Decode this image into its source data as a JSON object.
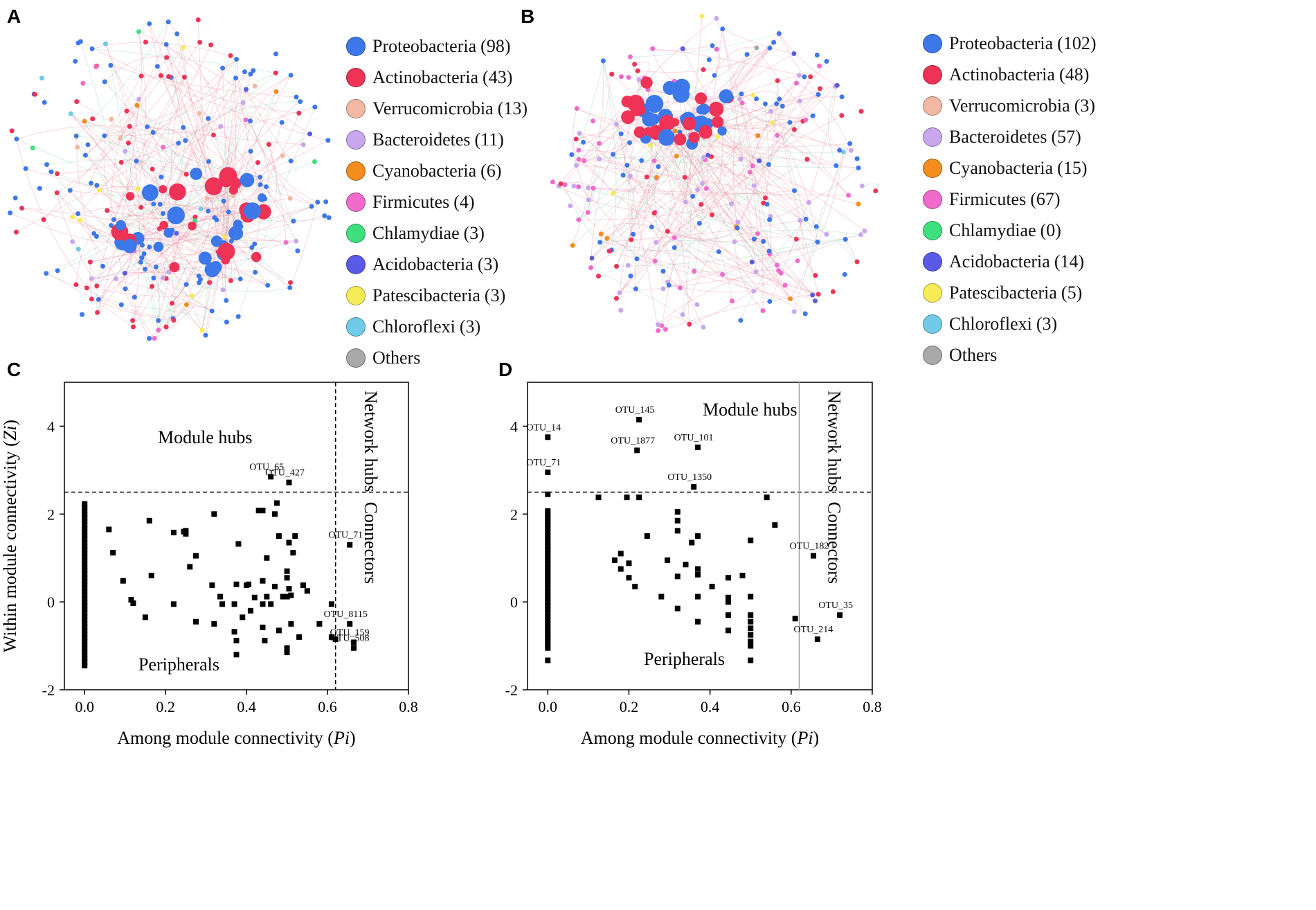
{
  "panels": {
    "a_letter": "A",
    "b_letter": "B",
    "c_letter": "C",
    "d_letter": "D"
  },
  "colors": {
    "Proteobacteria": "#3d78ea",
    "Actinobacteria": "#ef3356",
    "Verrucomicrobia": "#f3b8a4",
    "Bacteroidetes": "#c9a7ee",
    "Cyanobacteria": "#f48c1e",
    "Firmicutes": "#f06bcc",
    "Chlamydiae": "#3ee07e",
    "Acidobacteria": "#5a5ae8",
    "Patescibacteria": "#f6ec57",
    "Chloroflexi": "#6fcbe8",
    "Others": "#a9a9a9"
  },
  "legendA": [
    {
      "label": "Proteobacteria",
      "count": "(98)",
      "icon": "circle"
    },
    {
      "label": "Actinobacteria",
      "count": "(43)",
      "icon": "circle"
    },
    {
      "label": "Verrucomicrobia",
      "count": "(13)",
      "icon": "circle"
    },
    {
      "label": "Bacteroidetes",
      "count": "(11)",
      "icon": "circle"
    },
    {
      "label": "Cyanobacteria",
      "count": "(6)",
      "icon": "circle"
    },
    {
      "label": "Firmicutes",
      "count": "(4)",
      "icon": "circle"
    },
    {
      "label": "Chlamydiae",
      "count": "(3)",
      "icon": "circle"
    },
    {
      "label": "Acidobacteria",
      "count": "(3)",
      "icon": "circle"
    },
    {
      "label": "Patescibacteria",
      "count": "(3)",
      "icon": "circle"
    },
    {
      "label": "Chloroflexi",
      "count": "(3)",
      "icon": "circle"
    },
    {
      "label": "Others",
      "count": "",
      "icon": "circle"
    }
  ],
  "legendB": [
    {
      "label": "Proteobacteria",
      "count": "(102)",
      "icon": "circle"
    },
    {
      "label": "Actinobacteria",
      "count": "(48)",
      "icon": "circle"
    },
    {
      "label": "Verrucomicrobia",
      "count": "(3)",
      "icon": "circle"
    },
    {
      "label": "Bacteroidetes",
      "count": "(57)",
      "icon": "circle"
    },
    {
      "label": "Cyanobacteria",
      "count": "(15)",
      "icon": "circle"
    },
    {
      "label": "Firmicutes",
      "count": "(67)",
      "icon": "circle"
    },
    {
      "label": "Chlamydiae",
      "count": "(0)",
      "icon": "circle"
    },
    {
      "label": "Acidobacteria",
      "count": "(14)",
      "icon": "circle"
    },
    {
      "label": "Patescibacteria",
      "count": "(5)",
      "icon": "circle"
    },
    {
      "label": "Chloroflexi",
      "count": "(3)",
      "icon": "circle"
    },
    {
      "label": "Others",
      "count": "",
      "icon": "circle"
    }
  ],
  "chart_data": [
    {
      "id": "C",
      "type": "scatter",
      "xlabel": "Among module connectivity",
      "xlabel_var": "Pi",
      "ylabel": "Within module connectivity",
      "ylabel_var": "Zi",
      "xlim": [
        -0.05,
        0.8
      ],
      "ylim": [
        -2,
        5
      ],
      "xticks": [
        0.0,
        0.2,
        0.4,
        0.6,
        0.8
      ],
      "xtick_labels": [
        "0.0",
        "0.2",
        "0.4",
        "0.6",
        "0.8"
      ],
      "yticks": [
        -2,
        0,
        2,
        4
      ],
      "ytick_labels": [
        "-2",
        "0",
        "2",
        "4"
      ],
      "zi_threshold": 2.5,
      "pi_threshold": 0.62,
      "region_labels": {
        "module_hubs": "Module hubs",
        "network_hubs": "Network hubs",
        "connectors": "Connectors",
        "peripherals": "Peripherals"
      },
      "points": [
        [
          0.06,
          1.65
        ],
        [
          0.07,
          1.12
        ],
        [
          0.095,
          0.48
        ],
        [
          0.115,
          0.05
        ],
        [
          0.12,
          -0.03
        ],
        [
          0.15,
          -0.35
        ],
        [
          0.16,
          1.85
        ],
        [
          0.165,
          0.6
        ],
        [
          0.22,
          -0.05
        ],
        [
          0.22,
          1.58
        ],
        [
          0.245,
          1.6
        ],
        [
          0.25,
          1.55
        ],
        [
          0.25,
          1.62
        ],
        [
          0.26,
          0.8
        ],
        [
          0.275,
          1.05
        ],
        [
          0.275,
          -0.45
        ],
        [
          0.315,
          0.38
        ],
        [
          0.32,
          -0.5
        ],
        [
          0.32,
          2.0
        ],
        [
          0.335,
          0.12
        ],
        [
          0.34,
          -0.05
        ],
        [
          0.37,
          -0.05
        ],
        [
          0.37,
          -0.68
        ],
        [
          0.375,
          0.4
        ],
        [
          0.375,
          -0.88
        ],
        [
          0.375,
          -1.2
        ],
        [
          0.38,
          1.32
        ],
        [
          0.39,
          -0.35
        ],
        [
          0.4,
          0.38
        ],
        [
          0.405,
          0.4
        ],
        [
          0.41,
          -0.2
        ],
        [
          0.42,
          0.1
        ],
        [
          0.43,
          2.08
        ],
        [
          0.44,
          2.08
        ],
        [
          0.44,
          0.48
        ],
        [
          0.44,
          -0.05
        ],
        [
          0.44,
          -0.58
        ],
        [
          0.445,
          -0.88
        ],
        [
          0.45,
          0.12
        ],
        [
          0.45,
          1.0
        ],
        [
          0.46,
          -0.05
        ],
        [
          0.47,
          0.35
        ],
        [
          0.47,
          2.0
        ],
        [
          0.475,
          2.25
        ],
        [
          0.48,
          -0.65
        ],
        [
          0.48,
          1.5
        ],
        [
          0.49,
          0.12
        ],
        [
          0.5,
          0.12
        ],
        [
          0.5,
          0.55
        ],
        [
          0.5,
          0.7
        ],
        [
          0.5,
          -1.05
        ],
        [
          0.5,
          -1.15
        ],
        [
          0.505,
          0.3
        ],
        [
          0.505,
          1.35
        ],
        [
          0.51,
          -0.5
        ],
        [
          0.51,
          0.15
        ],
        [
          0.515,
          1.12
        ],
        [
          0.52,
          1.5
        ],
        [
          0.53,
          -0.8
        ],
        [
          0.54,
          0.38
        ],
        [
          0.55,
          0.25
        ],
        [
          0.58,
          -0.5
        ],
        [
          0.61,
          -0.05
        ],
        [
          0.61,
          -0.8
        ],
        [
          0.62,
          -0.85
        ]
      ],
      "zero_column": {
        "x": 0.0,
        "ymin": -1.45,
        "ymax": 2.28
      },
      "labeled_points": [
        {
          "x": 0.46,
          "y": 2.85,
          "label": "OTU_65"
        },
        {
          "x": 0.505,
          "y": 2.72,
          "label": "OTU_427"
        },
        {
          "x": 0.655,
          "y": 1.3,
          "label": "OTU_71"
        },
        {
          "x": 0.655,
          "y": -0.5,
          "label": "OTU_8115"
        },
        {
          "x": 0.665,
          "y": -0.92,
          "label": "OTU_159"
        },
        {
          "x": 0.665,
          "y": -1.05,
          "label": "OTU_508"
        }
      ]
    },
    {
      "id": "D",
      "type": "scatter",
      "xlabel": "Among module connectivity",
      "xlabel_var": "Pi",
      "ylabel": "Within module connectivity",
      "ylabel_var": "Zi",
      "xlim": [
        -0.05,
        0.8
      ],
      "ylim": [
        -2,
        5
      ],
      "xticks": [
        0.0,
        0.2,
        0.4,
        0.6,
        0.8
      ],
      "xtick_labels": [
        "0.0",
        "0.2",
        "0.4",
        "0.6",
        "0.8"
      ],
      "yticks": [
        -2,
        0,
        2,
        4
      ],
      "ytick_labels": [
        "-2",
        "0",
        "2",
        "4"
      ],
      "zi_threshold": 2.5,
      "pi_threshold": 0.62,
      "region_labels": {
        "module_hubs": "Module hubs",
        "network_hubs": "Network hubs",
        "connectors": "Connectors",
        "peripherals": "Peripherals"
      },
      "points": [
        [
          0.0,
          2.45
        ],
        [
          0.0,
          -1.33
        ],
        [
          0.125,
          2.38
        ],
        [
          0.165,
          0.95
        ],
        [
          0.18,
          1.1
        ],
        [
          0.18,
          0.75
        ],
        [
          0.195,
          2.38
        ],
        [
          0.2,
          0.88
        ],
        [
          0.2,
          0.55
        ],
        [
          0.215,
          0.35
        ],
        [
          0.225,
          2.38
        ],
        [
          0.245,
          1.5
        ],
        [
          0.28,
          0.12
        ],
        [
          0.295,
          0.95
        ],
        [
          0.32,
          1.62
        ],
        [
          0.32,
          1.85
        ],
        [
          0.32,
          2.05
        ],
        [
          0.32,
          0.58
        ],
        [
          0.32,
          -0.15
        ],
        [
          0.34,
          0.85
        ],
        [
          0.355,
          1.35
        ],
        [
          0.37,
          1.5
        ],
        [
          0.37,
          0.75
        ],
        [
          0.37,
          0.62
        ],
        [
          0.37,
          0.12
        ],
        [
          0.37,
          -0.45
        ],
        [
          0.405,
          0.35
        ],
        [
          0.445,
          0.55
        ],
        [
          0.445,
          0.1
        ],
        [
          0.445,
          0.0
        ],
        [
          0.445,
          -0.3
        ],
        [
          0.445,
          -0.65
        ],
        [
          0.48,
          0.6
        ],
        [
          0.5,
          0.12
        ],
        [
          0.5,
          -0.3
        ],
        [
          0.5,
          -0.45
        ],
        [
          0.5,
          -0.6
        ],
        [
          0.5,
          -0.75
        ],
        [
          0.5,
          -0.9
        ],
        [
          0.5,
          -1.0
        ],
        [
          0.5,
          -1.33
        ],
        [
          0.5,
          1.4
        ],
        [
          0.54,
          2.38
        ],
        [
          0.56,
          1.75
        ],
        [
          0.61,
          -0.38
        ]
      ],
      "zero_column": {
        "x": 0.0,
        "ymin": -1.05,
        "ymax": 2.1
      },
      "labeled_points": [
        {
          "x": 0.0,
          "y": 3.75,
          "label": "OTU_14"
        },
        {
          "x": 0.0,
          "y": 2.95,
          "label": "OTU_71"
        },
        {
          "x": 0.225,
          "y": 4.15,
          "label": "OTU_145"
        },
        {
          "x": 0.22,
          "y": 3.45,
          "label": "OTU_1877"
        },
        {
          "x": 0.37,
          "y": 3.52,
          "label": "OTU_101"
        },
        {
          "x": 0.36,
          "y": 2.62,
          "label": "OTU_1350"
        },
        {
          "x": 0.655,
          "y": 1.05,
          "label": "OTU_182"
        },
        {
          "x": 0.72,
          "y": -0.3,
          "label": "OTU_35"
        },
        {
          "x": 0.665,
          "y": -0.85,
          "label": "OTU_214"
        }
      ]
    }
  ]
}
